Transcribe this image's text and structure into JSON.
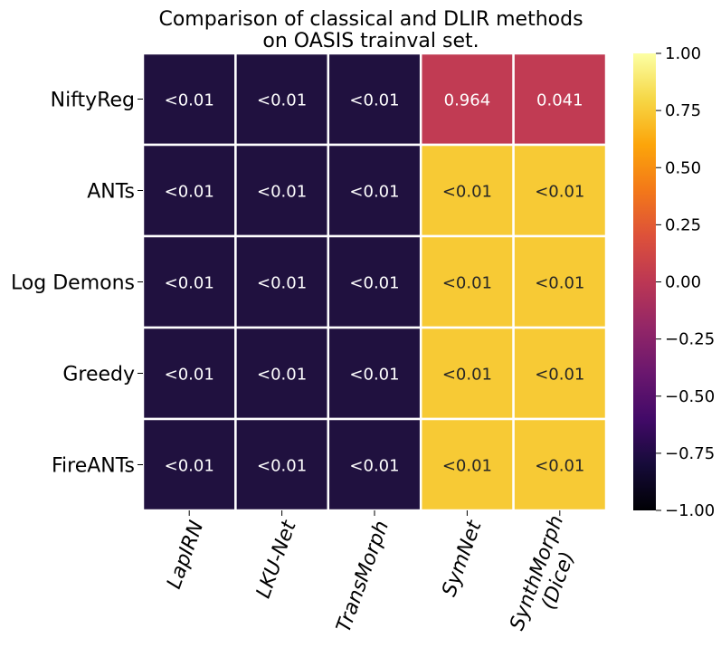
{
  "chart_data": {
    "type": "heatmap",
    "title": "Comparison of classical and DLIR methods\non OASIS trainval set.",
    "rows": [
      "NiftyReg",
      "ANTs",
      "Log Demons",
      "Greedy",
      "FireANTs"
    ],
    "columns": [
      "LapIRN",
      "LKU-Net",
      "TransMorph",
      "SymNet",
      "SynthMorph\n(Dice)"
    ],
    "cells": [
      [
        {
          "label": "<0.01",
          "value": -0.72
        },
        {
          "label": "<0.01",
          "value": -0.72
        },
        {
          "label": "<0.01",
          "value": -0.72
        },
        {
          "label": "0.964",
          "value": 0.05
        },
        {
          "label": "0.041",
          "value": 0.05
        }
      ],
      [
        {
          "label": "<0.01",
          "value": -0.72
        },
        {
          "label": "<0.01",
          "value": -0.72
        },
        {
          "label": "<0.01",
          "value": -0.72
        },
        {
          "label": "<0.01",
          "value": 0.8
        },
        {
          "label": "<0.01",
          "value": 0.8
        }
      ],
      [
        {
          "label": "<0.01",
          "value": -0.72
        },
        {
          "label": "<0.01",
          "value": -0.72
        },
        {
          "label": "<0.01",
          "value": -0.72
        },
        {
          "label": "<0.01",
          "value": 0.8
        },
        {
          "label": "<0.01",
          "value": 0.8
        }
      ],
      [
        {
          "label": "<0.01",
          "value": -0.72
        },
        {
          "label": "<0.01",
          "value": -0.72
        },
        {
          "label": "<0.01",
          "value": -0.72
        },
        {
          "label": "<0.01",
          "value": 0.8
        },
        {
          "label": "<0.01",
          "value": 0.8
        }
      ],
      [
        {
          "label": "<0.01",
          "value": -0.72
        },
        {
          "label": "<0.01",
          "value": -0.72
        },
        {
          "label": "<0.01",
          "value": -0.72
        },
        {
          "label": "<0.01",
          "value": 0.8
        },
        {
          "label": "<0.01",
          "value": 0.8
        }
      ]
    ],
    "colorbar": {
      "colormap": "inferno",
      "range": [
        -1.0,
        1.0
      ],
      "ticks": [
        {
          "value": 1.0,
          "label": "1.00"
        },
        {
          "value": 0.75,
          "label": "0.75"
        },
        {
          "value": 0.5,
          "label": "0.50"
        },
        {
          "value": 0.25,
          "label": "0.25"
        },
        {
          "value": 0.0,
          "label": "0.00"
        },
        {
          "value": -0.25,
          "label": "−0.25"
        },
        {
          "value": -0.5,
          "label": "−0.50"
        },
        {
          "value": -0.75,
          "label": "−0.75"
        },
        {
          "value": -1.0,
          "label": "−1.00"
        }
      ]
    },
    "colors": {
      "dark_cell": "#20113f",
      "red_cell": "#c13b53",
      "yellow_cell": "#f7ca35",
      "grid_line": "#ffffff"
    }
  }
}
